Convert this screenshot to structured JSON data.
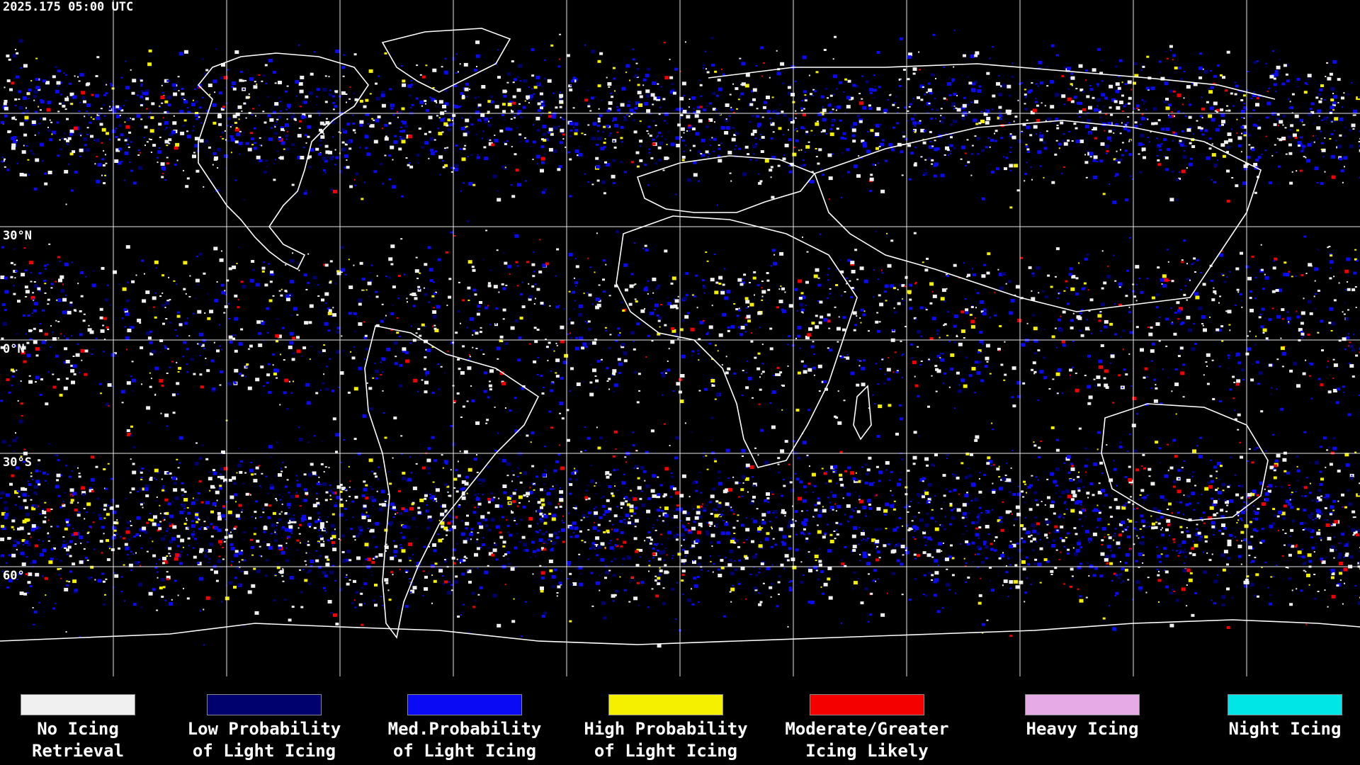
{
  "timestamp": "2025.175 05:00 UTC",
  "latitude_labels": [
    "30°N",
    "0°N",
    "30°S",
    "60°"
  ],
  "legend": [
    {
      "line1": "No Icing",
      "line2": "Retrieval",
      "color": "#f0f0f0"
    },
    {
      "line1": "Low Probability",
      "line2": "of Light Icing",
      "color": "#00006e"
    },
    {
      "line1": "Med.Probability",
      "line2": "of Light Icing",
      "color": "#0a0af5"
    },
    {
      "line1": "High Probability",
      "line2": "of Light Icing",
      "color": "#f5f000"
    },
    {
      "line1": "Moderate/Greater",
      "line2": "Icing Likely",
      "color": "#f50000"
    },
    {
      "line1": "Heavy Icing",
      "line2": "",
      "color": "#e6aae6"
    },
    {
      "line1": "Night Icing",
      "line2": "",
      "color": "#00e6e6"
    }
  ],
  "colors": {
    "background": "#000000",
    "grid": "#ffffff",
    "coastline": "#ffffff"
  }
}
